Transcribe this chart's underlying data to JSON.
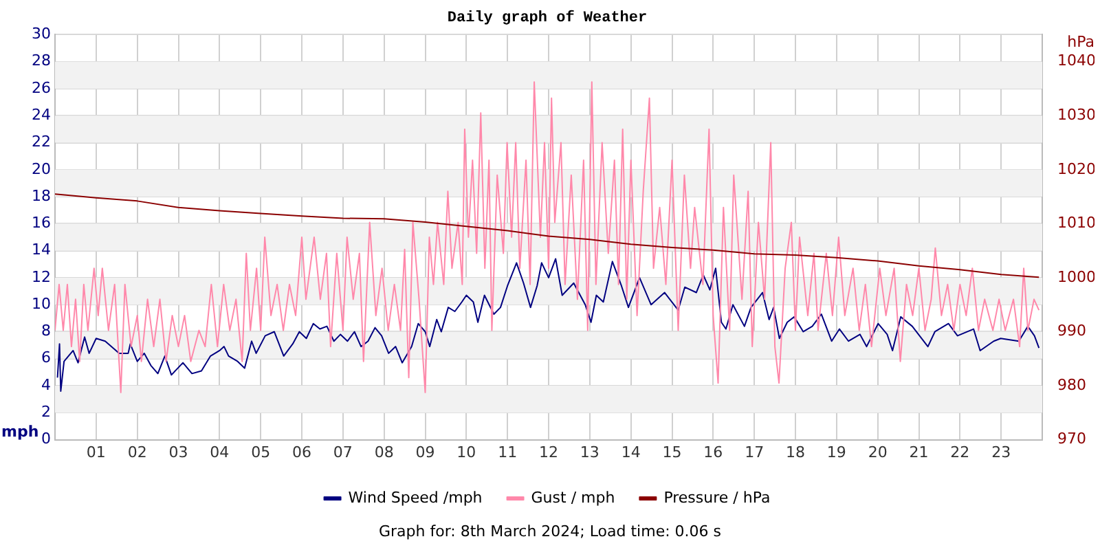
{
  "chart_data": {
    "type": "line",
    "title": "Daily graph of Weather",
    "ylabel": "mph",
    "y2label": "hPa",
    "annotations": [
      "Graph for: 8th March 2024; Load time: 0.06 s"
    ],
    "xlim": [
      0,
      24
    ],
    "xticks": [
      {
        "value": 1,
        "label": "01"
      },
      {
        "value": 2,
        "label": "02"
      },
      {
        "value": 3,
        "label": "03"
      },
      {
        "value": 4,
        "label": "04"
      },
      {
        "value": 5,
        "label": "05"
      },
      {
        "value": 6,
        "label": "06"
      },
      {
        "value": 7,
        "label": "07"
      },
      {
        "value": 8,
        "label": "08"
      },
      {
        "value": 9,
        "label": "09"
      },
      10,
      11,
      12,
      13,
      14,
      15,
      16,
      17,
      18,
      19,
      20,
      21,
      22,
      23
    ],
    "ylim": [
      0,
      30
    ],
    "yticks": [
      0,
      2,
      4,
      6,
      8,
      10,
      12,
      14,
      16,
      18,
      20,
      22,
      24,
      26,
      28,
      30
    ],
    "y2lim": [
      970,
      1045
    ],
    "y2ticks": [
      970,
      980,
      990,
      1000,
      1010,
      1020,
      1030,
      1040
    ],
    "grid": true,
    "legend": "bottom",
    "marker": "none",
    "line_style": "solid",
    "series": [
      {
        "name": "Wind Speed /mph",
        "color": "#000080",
        "x": [
          0.06,
          0.11,
          0.14,
          0.22,
          0.44,
          0.56,
          0.72,
          0.83,
          1.0,
          1.22,
          1.56,
          1.78,
          1.83,
          2.0,
          2.17,
          2.33,
          2.5,
          2.67,
          2.83,
          3.11,
          3.33,
          3.56,
          3.78,
          4.0,
          4.11,
          4.22,
          4.44,
          4.61,
          4.78,
          4.89,
          5.11,
          5.33,
          5.56,
          5.78,
          5.94,
          6.11,
          6.28,
          6.44,
          6.61,
          6.78,
          6.94,
          7.11,
          7.28,
          7.44,
          7.61,
          7.78,
          7.94,
          8.11,
          8.28,
          8.44,
          8.67,
          8.83,
          9.0,
          9.11,
          9.28,
          9.39,
          9.56,
          9.72,
          9.89,
          10.0,
          10.17,
          10.28,
          10.44,
          10.67,
          10.83,
          11.0,
          11.22,
          11.39,
          11.56,
          11.72,
          11.83,
          12.0,
          12.17,
          12.33,
          12.61,
          12.89,
          13.03,
          13.16,
          13.33,
          13.55,
          13.77,
          13.94,
          14.21,
          14.49,
          14.82,
          15.15,
          15.31,
          15.59,
          15.76,
          15.92,
          16.06,
          16.2,
          16.31,
          16.48,
          16.76,
          16.92,
          17.2,
          17.36,
          17.47,
          17.61,
          17.8,
          17.97,
          18.19,
          18.41,
          18.63,
          18.88,
          19.07,
          19.29,
          19.57,
          19.73,
          20.01,
          20.23,
          20.36,
          20.56,
          20.84,
          21.22,
          21.39,
          21.72,
          21.94,
          22.33,
          22.49,
          22.82,
          22.99,
          23.43,
          23.65,
          23.81,
          23.92
        ],
        "values": [
          4.6,
          7.1,
          3.6,
          5.8,
          6.6,
          5.7,
          7.6,
          6.4,
          7.5,
          7.3,
          6.4,
          6.4,
          7.1,
          5.8,
          6.4,
          5.5,
          4.9,
          6.2,
          4.8,
          5.7,
          4.9,
          5.1,
          6.2,
          6.6,
          6.9,
          6.2,
          5.8,
          5.3,
          7.3,
          6.4,
          7.7,
          8.0,
          6.2,
          7.1,
          8.0,
          7.5,
          8.6,
          8.2,
          8.4,
          7.3,
          7.8,
          7.3,
          8.0,
          6.9,
          7.3,
          8.3,
          7.7,
          6.4,
          6.9,
          5.7,
          6.9,
          8.6,
          8.0,
          6.9,
          8.9,
          8.0,
          9.8,
          9.5,
          10.2,
          10.7,
          10.2,
          8.7,
          10.7,
          9.3,
          9.8,
          11.4,
          13.1,
          11.6,
          9.8,
          11.4,
          13.1,
          12.0,
          13.4,
          10.7,
          11.6,
          10.0,
          8.7,
          10.7,
          10.2,
          13.2,
          11.4,
          9.8,
          12.0,
          10.0,
          10.9,
          9.6,
          11.3,
          10.9,
          12.2,
          11.1,
          12.7,
          8.7,
          8.2,
          10.0,
          8.4,
          9.8,
          10.9,
          8.9,
          9.8,
          7.5,
          8.7,
          9.1,
          8.0,
          8.4,
          9.3,
          7.3,
          8.2,
          7.3,
          7.8,
          6.9,
          8.6,
          7.8,
          6.6,
          9.1,
          8.4,
          6.9,
          8.0,
          8.6,
          7.7,
          8.2,
          6.6,
          7.3,
          7.5,
          7.3,
          8.4,
          7.7,
          6.8
        ]
      },
      {
        "name": "Gust / mph",
        "color": "#ff88aa",
        "x": [
          0,
          0.1,
          0.2,
          0.3,
          0.4,
          0.5,
          0.6,
          0.7,
          0.8,
          0.95,
          1.05,
          1.15,
          1.3,
          1.45,
          1.6,
          1.7,
          1.85,
          2.0,
          2.1,
          2.25,
          2.4,
          2.55,
          2.7,
          2.85,
          3.0,
          3.15,
          3.3,
          3.5,
          3.65,
          3.8,
          3.95,
          4.1,
          4.25,
          4.4,
          4.55,
          4.65,
          4.75,
          4.9,
          5.0,
          5.1,
          5.25,
          5.4,
          5.55,
          5.7,
          5.85,
          6.0,
          6.1,
          6.3,
          6.45,
          6.6,
          6.7,
          6.85,
          7.0,
          7.1,
          7.25,
          7.4,
          7.5,
          7.65,
          7.8,
          7.95,
          8.1,
          8.25,
          8.4,
          8.5,
          8.6,
          8.7,
          8.85,
          9.0,
          9.1,
          9.2,
          9.3,
          9.45,
          9.55,
          9.65,
          9.8,
          9.9,
          9.96,
          10.05,
          10.15,
          10.25,
          10.35,
          10.45,
          10.55,
          10.62,
          10.75,
          10.9,
          10.99,
          11.1,
          11.2,
          11.3,
          11.45,
          11.55,
          11.65,
          11.8,
          11.9,
          12.0,
          12.07,
          12.15,
          12.3,
          12.4,
          12.55,
          12.7,
          12.85,
          12.95,
          13.05,
          13.15,
          13.3,
          13.45,
          13.6,
          13.7,
          13.8,
          13.9,
          14.0,
          14.15,
          14.3,
          14.45,
          14.55,
          14.7,
          14.85,
          15.0,
          15.15,
          15.3,
          15.45,
          15.55,
          15.75,
          15.9,
          16.0,
          16.12,
          16.25,
          16.4,
          16.5,
          16.7,
          16.85,
          16.95,
          17.1,
          17.25,
          17.4,
          17.5,
          17.6,
          17.75,
          17.9,
          18.0,
          18.1,
          18.3,
          18.45,
          18.55,
          18.75,
          18.9,
          19.05,
          19.2,
          19.4,
          19.55,
          19.7,
          19.85,
          20.05,
          20.2,
          20.4,
          20.55,
          20.7,
          20.85,
          21.0,
          21.15,
          21.3,
          21.4,
          21.55,
          21.7,
          21.85,
          22.0,
          22.15,
          22.3,
          22.45,
          22.6,
          22.8,
          22.95,
          23.1,
          23.3,
          23.45,
          23.55,
          23.65,
          23.8,
          23.92
        ],
        "values": [
          8.1,
          11.5,
          8.1,
          11.5,
          6.9,
          10.4,
          5.8,
          11.5,
          8.1,
          12.7,
          9.2,
          12.7,
          8.1,
          11.5,
          3.5,
          11.5,
          6.9,
          9.2,
          5.8,
          10.4,
          6.9,
          10.4,
          5.8,
          9.2,
          6.9,
          9.2,
          5.8,
          8.1,
          6.9,
          11.5,
          6.9,
          11.5,
          8.1,
          10.4,
          5.8,
          13.8,
          8.1,
          12.7,
          8.1,
          15.0,
          9.2,
          11.5,
          8.1,
          11.5,
          9.2,
          15.0,
          10.4,
          15.0,
          10.4,
          13.8,
          6.9,
          13.8,
          8.1,
          15.0,
          10.4,
          13.8,
          5.8,
          16.1,
          9.2,
          12.7,
          8.1,
          11.5,
          8.1,
          14.1,
          4.6,
          16.1,
          10.4,
          3.5,
          15.0,
          11.5,
          16.1,
          11.5,
          18.4,
          12.7,
          16.1,
          11.5,
          23.0,
          15.0,
          20.7,
          13.8,
          24.2,
          12.7,
          20.7,
          8.1,
          19.6,
          13.8,
          22.0,
          15.0,
          22.0,
          12.7,
          20.7,
          11.5,
          26.5,
          15.0,
          22.0,
          12.7,
          25.3,
          16.1,
          22.0,
          11.5,
          19.6,
          10.4,
          20.7,
          8.1,
          26.5,
          11.5,
          22.0,
          13.8,
          20.7,
          11.5,
          23.0,
          10.4,
          20.7,
          9.2,
          18.4,
          25.3,
          12.7,
          17.2,
          11.5,
          20.7,
          8.1,
          19.6,
          12.7,
          17.2,
          11.5,
          23.0,
          9.2,
          4.2,
          17.2,
          8.1,
          19.6,
          10.4,
          18.4,
          6.9,
          16.1,
          10.4,
          22.0,
          6.9,
          4.2,
          12.7,
          16.1,
          8.1,
          15.0,
          9.2,
          13.8,
          8.1,
          13.8,
          9.2,
          15.0,
          9.2,
          12.7,
          8.1,
          11.5,
          6.9,
          12.7,
          9.2,
          12.7,
          5.8,
          11.5,
          9.2,
          12.7,
          8.1,
          10.4,
          14.2,
          9.2,
          11.5,
          8.1,
          11.5,
          9.2,
          12.7,
          8.1,
          10.4,
          8.1,
          10.4,
          8.1,
          10.4,
          6.9,
          12.7,
          8.1,
          10.4,
          9.6
        ]
      },
      {
        "name": "Pressure / hPa",
        "color": "#8b0000",
        "axis": "y2",
        "x": [
          0,
          1,
          2,
          3,
          4,
          5,
          6,
          7,
          8,
          9,
          10,
          11,
          12,
          13,
          14,
          15,
          16,
          17,
          18,
          19,
          20,
          21,
          22,
          23,
          23.92
        ],
        "values": [
          1015.5,
          1014.8,
          1014.2,
          1013.0,
          1012.4,
          1011.9,
          1011.4,
          1011.0,
          1010.9,
          1010.3,
          1009.5,
          1008.7,
          1007.7,
          1007.1,
          1006.2,
          1005.6,
          1005.1,
          1004.4,
          1004.2,
          1003.7,
          1003.1,
          1002.2,
          1001.5,
          1000.6,
          1000.1
        ]
      }
    ]
  }
}
